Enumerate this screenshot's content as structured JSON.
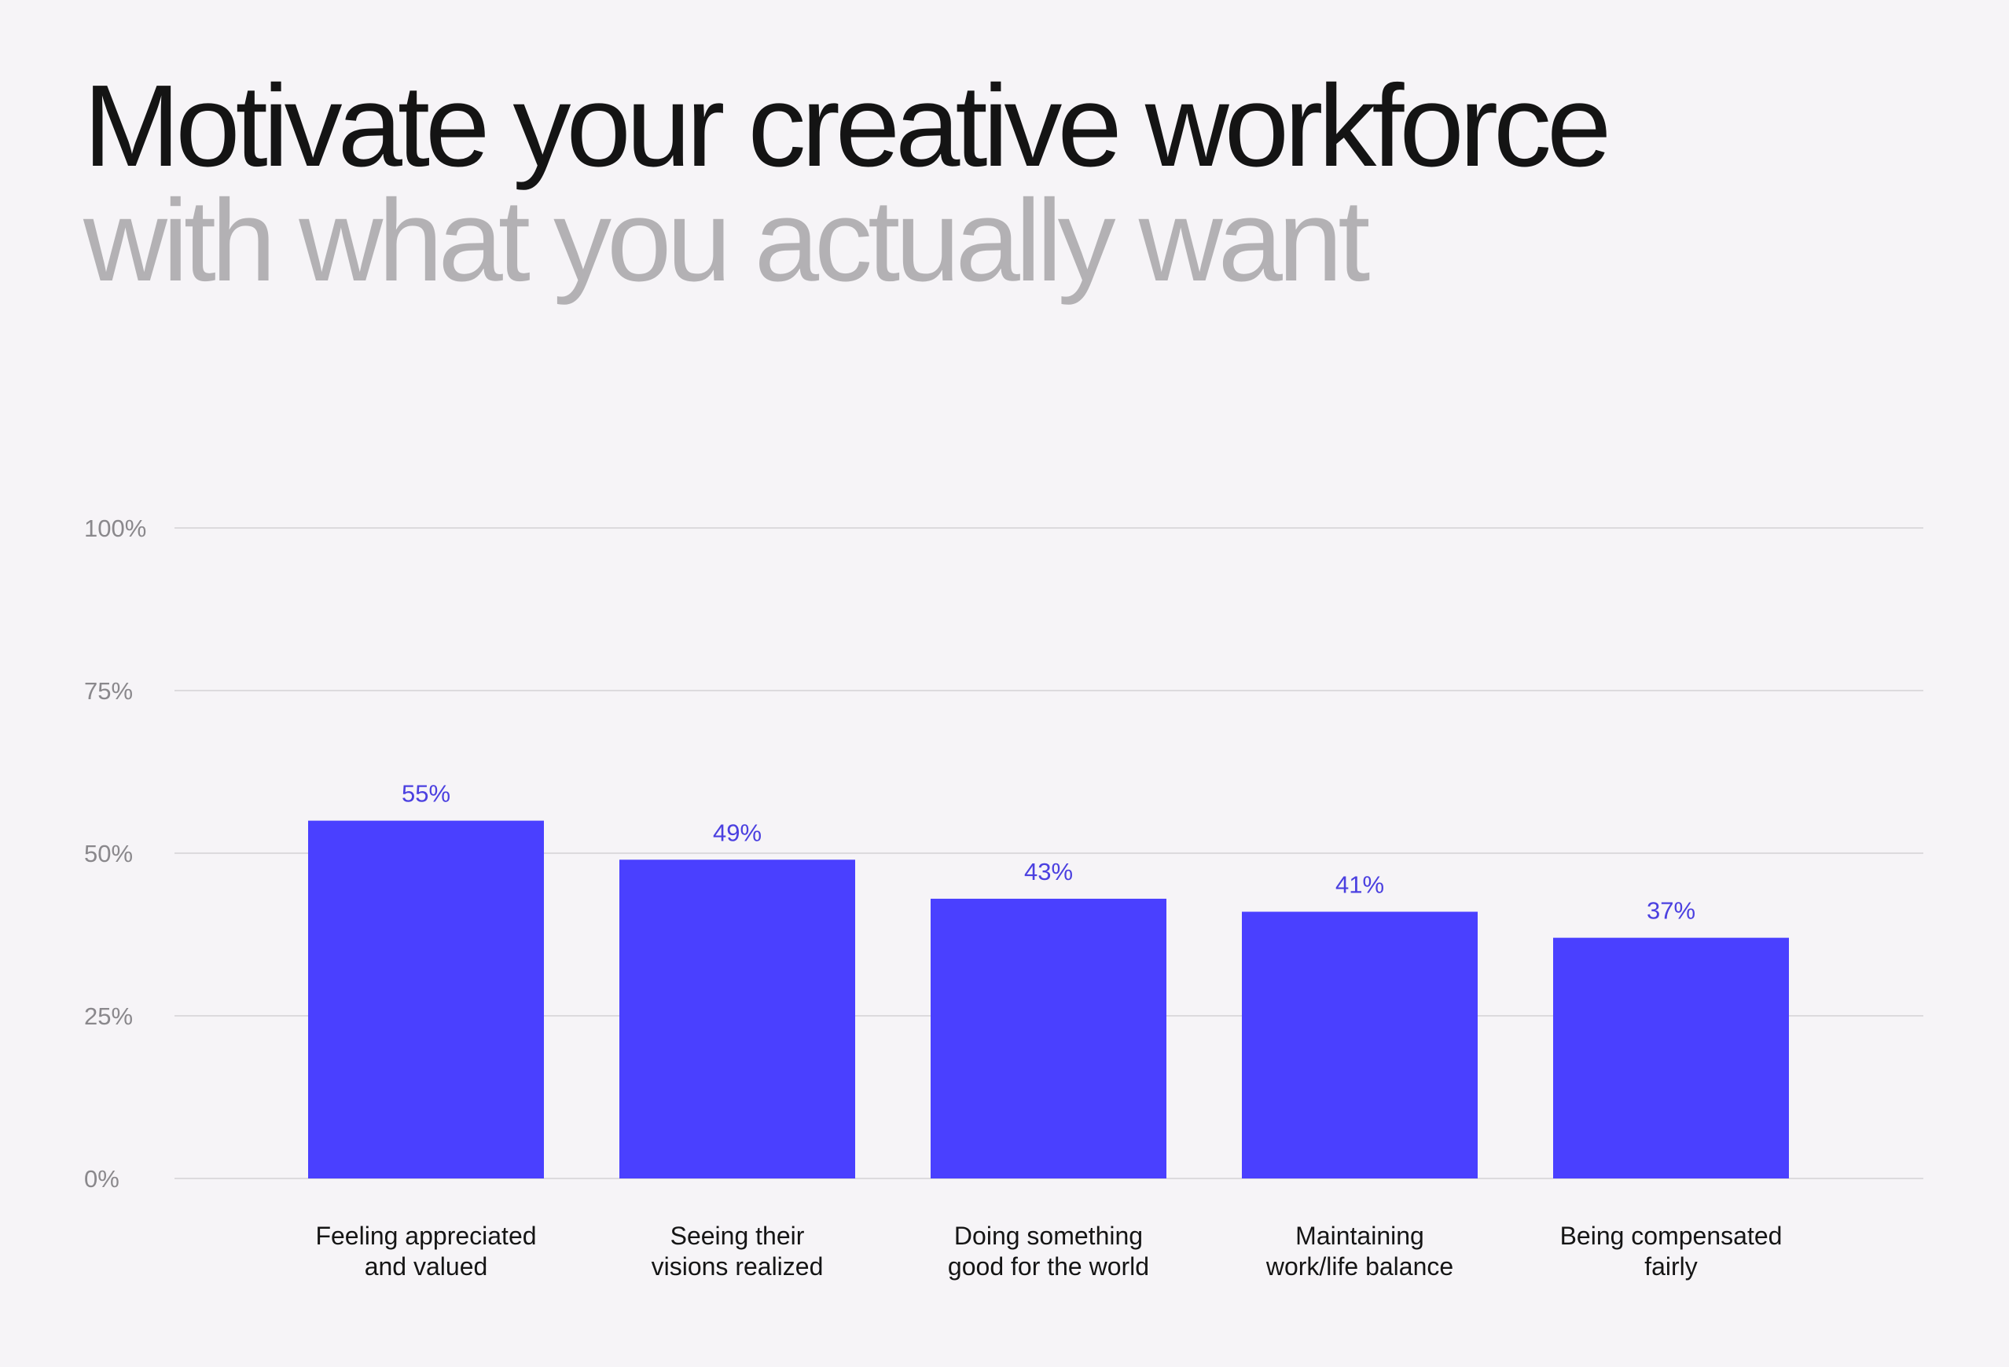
{
  "header": {
    "title_line1": "Motivate your creative workforce",
    "title_line2": "with what you actually want"
  },
  "colors": {
    "background": "#f6f4f7",
    "bar": "#4a40ff",
    "value_label": "#4b40e0",
    "grid": "#dcdadd",
    "title_primary": "#141414",
    "title_secondary": "#b3b1b4"
  },
  "chart_data": {
    "type": "bar",
    "categories": [
      [
        "Feeling appreciated",
        "and valued"
      ],
      [
        "Seeing their",
        "visions realized"
      ],
      [
        "Doing something",
        "good for the world"
      ],
      [
        "Maintaining",
        "work/life balance"
      ],
      [
        "Being compensated",
        "fairly"
      ]
    ],
    "values": [
      55,
      49,
      43,
      41,
      37
    ],
    "value_labels": [
      "55%",
      "49%",
      "43%",
      "41%",
      "37%"
    ],
    "ylim": [
      0,
      100
    ],
    "yticks": [
      0,
      25,
      50,
      75,
      100
    ],
    "ytick_labels": [
      "0%",
      "25%",
      "50%",
      "75%",
      "100%"
    ],
    "grid": true
  }
}
